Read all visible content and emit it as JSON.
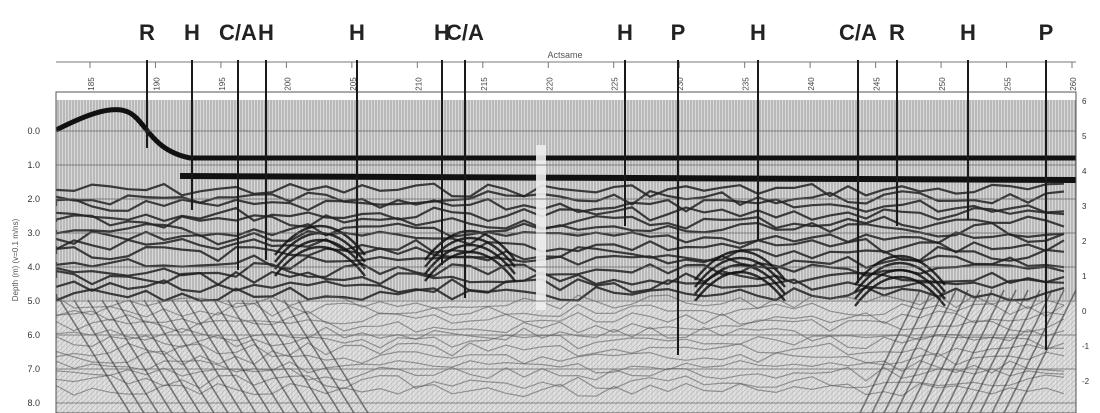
{
  "diagram": {
    "type": "gpr-radargram",
    "top_axis_title": "Actsame",
    "top_ticks": [
      "185",
      "190",
      "195",
      "200",
      "205",
      "210",
      "215",
      "220",
      "225",
      "230",
      "235",
      "240",
      "245",
      "250",
      "255",
      "260"
    ],
    "left_axis_label": "Depth (m) (v=0.1 m/ns)",
    "left_ticks": [
      "0.0",
      "1.0",
      "2.0",
      "3.0",
      "4.0",
      "5.0",
      "6.0",
      "7.0",
      "8.0"
    ],
    "right_ticks": [
      "6",
      "5",
      "4",
      "3",
      "2",
      "1",
      "0",
      "-1",
      "-2"
    ],
    "markers": [
      {
        "label": "R"
      },
      {
        "label": "H"
      },
      {
        "label": "C/A"
      },
      {
        "label": "H"
      },
      {
        "label": "H"
      },
      {
        "label": "H"
      },
      {
        "label": "C/A"
      },
      {
        "label": "H"
      },
      {
        "label": "P"
      },
      {
        "label": "H"
      },
      {
        "label": "C/A"
      },
      {
        "label": "R"
      },
      {
        "label": "H"
      },
      {
        "label": "P"
      }
    ]
  }
}
